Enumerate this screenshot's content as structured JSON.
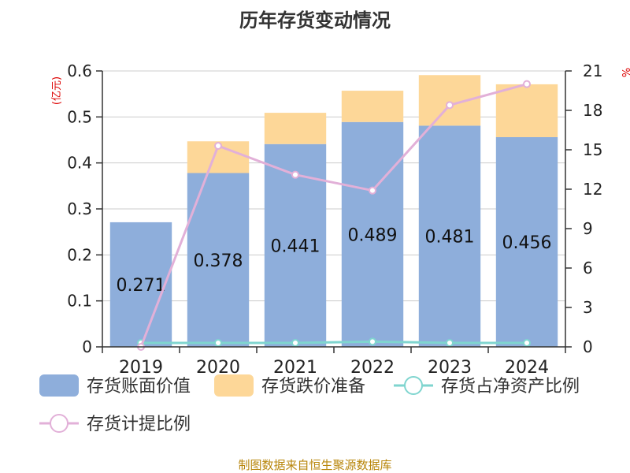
{
  "chart_data": {
    "type": "bar",
    "title": "历年存货变动情况",
    "left_axis_unit": "(亿元)",
    "right_axis_unit": "%",
    "categories": [
      "2019",
      "2020",
      "2021",
      "2022",
      "2023",
      "2024"
    ],
    "series": [
      {
        "name": "存货账面价值",
        "kind": "bar",
        "stack": "inv",
        "axis": "left",
        "color": "#8eaedb",
        "values": [
          0.271,
          0.378,
          0.441,
          0.489,
          0.481,
          0.456
        ]
      },
      {
        "name": "存货跌价准备",
        "kind": "bar",
        "stack": "inv",
        "axis": "left",
        "color": "#fdd798",
        "values": [
          0.0,
          0.069,
          0.068,
          0.068,
          0.11,
          0.115
        ]
      },
      {
        "name": "存货占净资产比例",
        "kind": "line",
        "axis": "right",
        "color": "#7fd5cf",
        "values": [
          0.3,
          0.3,
          0.3,
          0.4,
          0.3,
          0.3
        ]
      },
      {
        "name": "存货计提比例",
        "kind": "line",
        "axis": "right",
        "color": "#e2b0d8",
        "values": [
          0.0,
          15.3,
          13.1,
          11.9,
          18.4,
          20.0
        ]
      }
    ],
    "data_labels": [
      "0.271",
      "0.378",
      "0.441",
      "0.489",
      "0.481",
      "0.456"
    ],
    "left_axis": {
      "min": 0,
      "max": 0.6,
      "ticks": [
        "0",
        "0.1",
        "0.2",
        "0.3",
        "0.4",
        "0.5",
        "0.6"
      ]
    },
    "right_axis": {
      "min": 0,
      "max": 21,
      "ticks": [
        "0",
        "3",
        "6",
        "9",
        "12",
        "15",
        "18",
        "21"
      ]
    },
    "grid": true,
    "legend_position": "bottom"
  },
  "footer": {
    "source": "制图数据来自恒生聚源数据库"
  }
}
